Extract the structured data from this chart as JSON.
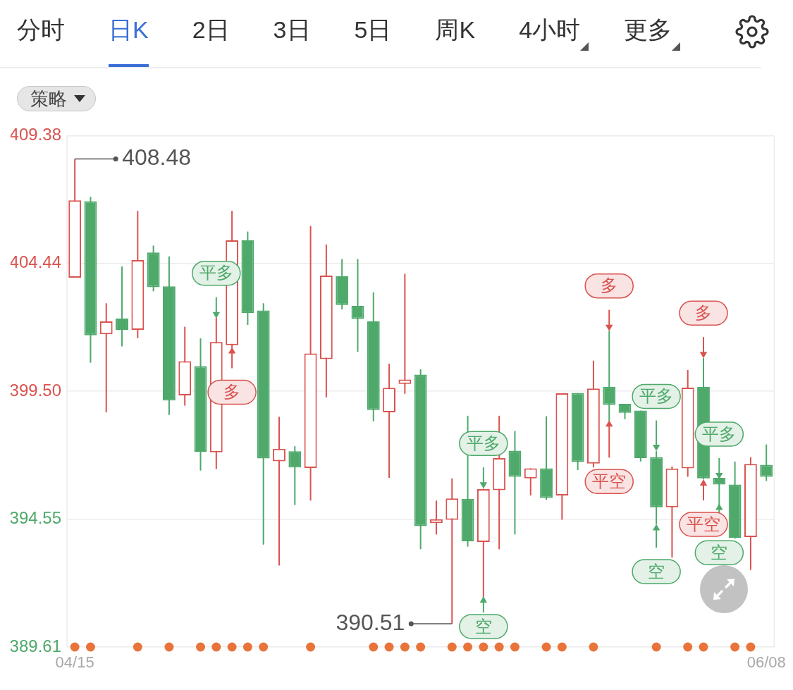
{
  "chart_data": {
    "type": "candlestick",
    "categories": [
      "04/15",
      null,
      null,
      null,
      null,
      null,
      null,
      null,
      null,
      null,
      null,
      null,
      null,
      null,
      null,
      null,
      null,
      null,
      null,
      null,
      null,
      null,
      null,
      null,
      null,
      null,
      null,
      null,
      null,
      null,
      null,
      null,
      null,
      null,
      null,
      null,
      null,
      null,
      null,
      null,
      null,
      null,
      null,
      null,
      "06/08"
    ],
    "ylim": [
      389.61,
      409.38
    ],
    "yticks": [
      389.61,
      394.55,
      {
        "value": 399.5,
        "label": "399.50"
      },
      404.44,
      409.38
    ],
    "grid": "y",
    "series": [
      {
        "ohlc": [
          [
            403.89,
            408.48,
            403.89,
            406.88
          ],
          [
            406.84,
            407.01,
            400.6,
            401.66
          ],
          [
            401.7,
            402.9,
            398.68,
            402.2
          ],
          [
            402.31,
            404.32,
            401.23,
            401.87
          ],
          [
            401.87,
            406.47,
            401.55,
            404.57
          ],
          [
            404.86,
            405.13,
            403.36,
            403.52
          ],
          [
            403.55,
            404.71,
            398.58,
            399.14
          ],
          [
            399.34,
            401.99,
            398.94,
            400.66
          ],
          [
            400.47,
            401.54,
            396.43,
            397.16
          ],
          [
            397.14,
            402.34,
            396.49,
            401.4
          ],
          [
            401.28,
            406.47,
            401.17,
            405.33
          ],
          [
            405.33,
            405.67,
            402.06,
            402.52
          ],
          [
            402.62,
            402.9,
            393.57,
            396.9
          ],
          [
            396.79,
            398.51,
            392.76,
            397.27
          ],
          [
            397.18,
            397.37,
            395.1,
            396.55
          ],
          [
            396.53,
            405.89,
            395.27,
            400.96
          ],
          [
            400.74,
            405.17,
            399.26,
            403.97
          ],
          [
            403.94,
            404.61,
            402.66,
            402.83
          ],
          [
            402.8,
            404.61,
            401.02,
            402.29
          ],
          [
            402.2,
            403.32,
            398.33,
            398.77
          ],
          [
            398.68,
            400.56,
            396.15,
            399.63
          ],
          [
            399.78,
            404.04,
            399.4,
            399.95
          ],
          [
            400.14,
            400.35,
            393.39,
            394.28
          ],
          [
            394.4,
            395.27,
            393.96,
            394.55
          ],
          [
            394.53,
            396.13,
            390.51,
            395.35
          ],
          [
            395.34,
            398.55,
            393.49,
            393.7
          ],
          [
            393.67,
            395.73,
            391.52,
            395.71
          ],
          [
            395.67,
            398.55,
            393.39,
            396.91
          ],
          [
            397.2,
            397.96,
            393.96,
            396.19
          ],
          [
            396.13,
            396.52,
            395.47,
            396.52
          ],
          [
            396.52,
            398.53,
            395.3,
            395.37
          ],
          [
            395.47,
            399.42,
            394.53,
            399.42
          ],
          [
            399.43,
            399.43,
            396.45,
            396.76
          ],
          [
            396.7,
            400.68,
            396.55,
            399.6
          ],
          [
            399.67,
            401.83,
            398.35,
            398.97
          ],
          [
            399.01,
            399.01,
            398.42,
            398.66
          ],
          [
            398.75,
            398.75,
            396.78,
            396.91
          ],
          [
            396.95,
            397.18,
            394.36,
            395.01
          ],
          [
            395.01,
            396.59,
            393.07,
            396.51
          ],
          [
            396.52,
            400.32,
            396.19,
            399.64
          ],
          [
            399.67,
            400.78,
            396.09,
            396.13
          ],
          [
            396.15,
            396.15,
            395.01,
            395.89
          ],
          [
            395.89,
            396.78,
            393.8,
            393.83
          ],
          [
            393.86,
            396.95,
            392.59,
            396.69
          ],
          [
            396.65,
            397.44,
            396.03,
            396.19
          ]
        ],
        "value_labels": [
          "408.48",
          null,
          null,
          null,
          null,
          null,
          null,
          null,
          null,
          null,
          null,
          null,
          null,
          null,
          null,
          null,
          null,
          null,
          null,
          null,
          null,
          null,
          null,
          null,
          "390.51",
          null,
          null,
          null,
          null,
          null,
          null,
          null,
          null,
          null,
          null,
          null,
          null,
          null,
          null,
          null,
          null,
          null,
          null,
          null,
          null
        ],
        "colors": [
          "#d9534f",
          "#4ea96b",
          "#d9534f",
          "#4ea96b",
          "#d9534f",
          "#4ea96b",
          "#4ea96b",
          "#d9534f",
          "#4ea96b",
          "#d9534f",
          "#d9534f",
          "#4ea96b",
          "#4ea96b",
          "#d9534f",
          "#4ea96b",
          "#d9534f",
          "#d9534f",
          "#4ea96b",
          "#4ea96b",
          "#4ea96b",
          "#d9534f",
          "#d9534f",
          "#4ea96b",
          "#d9534f",
          "#d9534f",
          "#4ea96b",
          "#d9534f",
          "#d9534f",
          "#4ea96b",
          "#d9534f",
          "#4ea96b",
          "#d9534f",
          "#4ea96b",
          "#d9534f",
          "#4ea96b",
          "#4ea96b",
          "#4ea96b",
          "#4ea96b",
          "#d9534f",
          "#d9534f",
          "#4ea96b",
          "#4ea96b",
          "#4ea96b",
          "#d9534f",
          "#4ea96b"
        ]
      },
      {
        "type": "scatter",
        "marker": "triangle",
        "values": [
          null,
          null,
          null,
          null,
          null,
          null,
          null,
          null,
          null,
          402.48,
          null,
          null,
          null,
          null,
          null,
          null,
          null,
          null,
          null,
          null,
          null,
          null,
          null,
          null,
          null,
          null,
          395.9,
          null,
          null,
          null,
          null,
          null,
          null,
          null,
          401.99,
          null,
          null,
          397.35,
          null,
          null,
          400.94,
          396.26,
          null,
          null,
          null
        ],
        "value_labels": [
          null,
          null,
          null,
          null,
          null,
          null,
          null,
          null,
          null,
          "平多",
          null,
          null,
          null,
          null,
          null,
          null,
          null,
          null,
          null,
          null,
          null,
          null,
          null,
          null,
          null,
          null,
          "平多",
          null,
          null,
          null,
          null,
          null,
          null,
          null,
          "多",
          null,
          null,
          "平多",
          null,
          null,
          "多",
          "平多",
          null,
          null,
          null
        ],
        "colors": [
          null,
          null,
          null,
          null,
          null,
          null,
          null,
          null,
          null,
          "#4ea96b",
          null,
          null,
          null,
          null,
          null,
          null,
          null,
          null,
          null,
          null,
          null,
          null,
          null,
          null,
          null,
          null,
          "#4ea96b",
          null,
          null,
          null,
          null,
          null,
          null,
          null,
          "#d9534f",
          null,
          null,
          "#4ea96b",
          null,
          null,
          "#d9534f",
          "#4ea96b",
          null,
          null,
          null
        ]
      },
      {
        "type": "scatter",
        "marker": "triangle",
        "values": [
          null,
          null,
          null,
          null,
          null,
          null,
          null,
          null,
          null,
          null,
          401.04,
          null,
          null,
          null,
          null,
          null,
          null,
          null,
          null,
          null,
          null,
          null,
          null,
          null,
          null,
          null,
          391.41,
          null,
          null,
          null,
          null,
          null,
          null,
          null,
          398.21,
          null,
          null,
          394.2,
          null,
          null,
          395.93,
          394.99,
          null,
          null,
          null
        ],
        "value_labels": [
          null,
          null,
          null,
          null,
          null,
          null,
          null,
          null,
          null,
          null,
          "多",
          null,
          null,
          null,
          null,
          null,
          null,
          null,
          null,
          null,
          null,
          null,
          null,
          null,
          null,
          null,
          "空",
          null,
          null,
          null,
          null,
          null,
          null,
          null,
          "平空",
          null,
          null,
          "空",
          null,
          null,
          "平空",
          "空",
          null,
          null,
          null
        ],
        "colors": [
          null,
          null,
          null,
          null,
          null,
          null,
          null,
          null,
          null,
          null,
          "#d9534f",
          null,
          null,
          null,
          null,
          null,
          null,
          null,
          null,
          null,
          null,
          null,
          null,
          null,
          null,
          null,
          "#4ea96b",
          null,
          null,
          null,
          null,
          null,
          null,
          null,
          "#d9534f",
          null,
          null,
          "#4ea96b",
          null,
          null,
          "#d9534f",
          "#4ea96b",
          null,
          null,
          null
        ]
      },
      {
        "type": "scatter",
        "marker": "circle",
        "color": "#e8743b",
        "values": [
          389.61,
          389.61,
          null,
          null,
          389.61,
          null,
          389.61,
          null,
          389.61,
          389.61,
          389.61,
          389.61,
          389.61,
          null,
          null,
          389.61,
          null,
          null,
          null,
          389.61,
          389.61,
          389.61,
          389.61,
          null,
          389.61,
          389.61,
          389.61,
          389.61,
          389.61,
          null,
          389.61,
          389.61,
          null,
          389.61,
          null,
          null,
          null,
          389.61,
          null,
          389.61,
          389.61,
          null,
          389.61,
          389.61,
          null
        ]
      }
    ],
    "annotations": [
      "分时",
      "日K",
      "2日",
      "3日",
      "5日",
      "周K",
      "4小时",
      "更多",
      "策略"
    ]
  }
}
